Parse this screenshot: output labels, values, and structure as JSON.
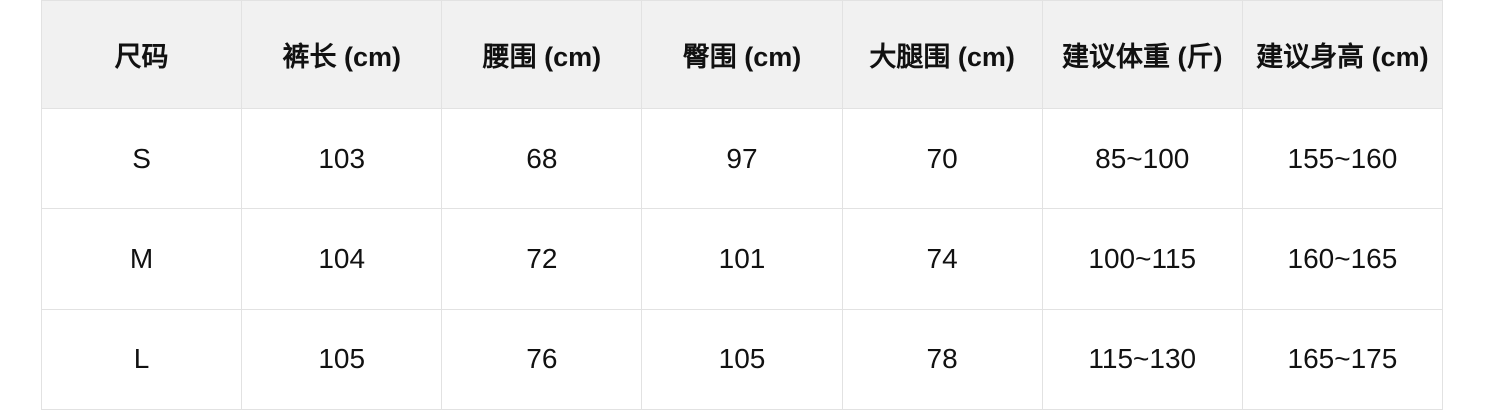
{
  "style": {
    "page_bg": "#ffffff",
    "header_bg": "#f1f1f1",
    "cell_bg": "#ffffff",
    "border_color": "#e2e2e2",
    "text_color": "#111111"
  },
  "chart_data": {
    "type": "table",
    "title": "",
    "columns": [
      "尺码",
      "裤长 (cm)",
      "腰围 (cm)",
      "臀围 (cm)",
      "大腿围 (cm)",
      "建议体重 (斤)",
      "建议身高 (cm)"
    ],
    "rows": [
      [
        "S",
        "103",
        "68",
        "97",
        "70",
        "85~100",
        "155~160"
      ],
      [
        "M",
        "104",
        "72",
        "101",
        "74",
        "100~115",
        "160~165"
      ],
      [
        "L",
        "105",
        "76",
        "105",
        "78",
        "115~130",
        "165~175"
      ]
    ]
  }
}
